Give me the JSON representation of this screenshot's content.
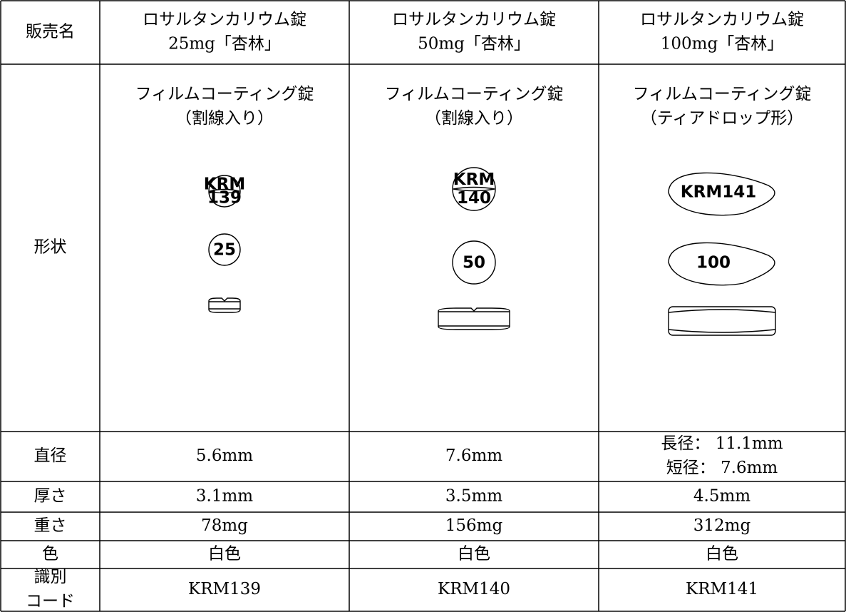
{
  "header": {
    "label": "販売名",
    "products": [
      [
        "ロサルタンカリウム錠",
        "25mg「杏林」"
      ],
      [
        "ロサルタンカリウム錠",
        "50mg「杏林」"
      ],
      [
        "ロサルタンカリウム錠",
        "100mg「杏林」"
      ]
    ]
  },
  "shape": {
    "label": "形状",
    "forms": [
      [
        "フィルムコーティング錠",
        "（割線入り）"
      ],
      [
        "フィルムコーティング錠",
        "（割線入り）"
      ],
      [
        "フィルムコーティング錠",
        "（ティアドロップ形）"
      ]
    ],
    "imprints": [
      {
        "front": [
          "KRM",
          "139"
        ],
        "back": "25"
      },
      {
        "front": [
          "KRM",
          "140"
        ],
        "back": "50"
      },
      {
        "front": [
          "KRM141"
        ],
        "back": "100"
      }
    ]
  },
  "rows": [
    {
      "label": [
        "直径"
      ],
      "cells": [
        [
          "5.6mm"
        ],
        [
          "7.6mm"
        ],
        [
          "長径： 11.1mm",
          "短径： 7.6mm"
        ]
      ]
    },
    {
      "label": [
        "厚さ"
      ],
      "cells": [
        [
          "3.1mm"
        ],
        [
          "3.5mm"
        ],
        [
          "4.5mm"
        ]
      ]
    },
    {
      "label": [
        "重さ"
      ],
      "cells": [
        [
          "78mg"
        ],
        [
          "156mg"
        ],
        [
          "312mg"
        ]
      ]
    },
    {
      "label": [
        "色"
      ],
      "cells": [
        [
          "白色"
        ],
        [
          "白色"
        ],
        [
          "白色"
        ]
      ]
    },
    {
      "label": [
        "識別",
        "コード"
      ],
      "cells": [
        [
          "KRM139"
        ],
        [
          "KRM140"
        ],
        [
          "KRM141"
        ]
      ]
    }
  ]
}
